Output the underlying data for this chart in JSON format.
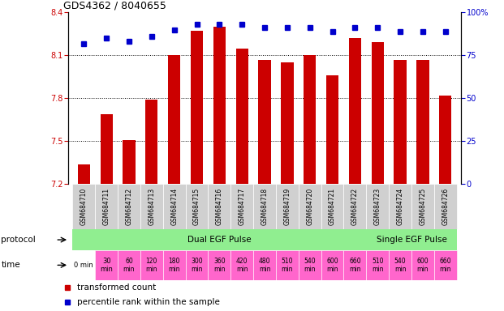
{
  "title": "GDS4362 / 8040655",
  "samples": [
    "GSM684710",
    "GSM684711",
    "GSM684712",
    "GSM684713",
    "GSM684714",
    "GSM684715",
    "GSM684716",
    "GSM684717",
    "GSM684718",
    "GSM684719",
    "GSM684720",
    "GSM684721",
    "GSM684722",
    "GSM684723",
    "GSM684724",
    "GSM684725",
    "GSM684726"
  ],
  "transformed_count": [
    7.34,
    7.69,
    7.51,
    7.79,
    8.1,
    8.27,
    8.3,
    8.15,
    8.07,
    8.05,
    8.1,
    7.96,
    8.22,
    8.19,
    8.07,
    8.07,
    7.82
  ],
  "percentile_rank": [
    82,
    85,
    83,
    86,
    90,
    93,
    93,
    93,
    91,
    91,
    91,
    89,
    91,
    91,
    89,
    89,
    89
  ],
  "time_labels": [
    "0 min",
    "30\nmin",
    "60\nmin",
    "120\nmin",
    "180\nmin",
    "300\nmin",
    "360\nmin",
    "420\nmin",
    "480\nmin",
    "510\nmin",
    "540\nmin",
    "600\nmin",
    "660\nmin",
    "510\nmin",
    "540\nmin",
    "600\nmin",
    "660\nmin"
  ],
  "protocol_dual": "Dual EGF Pulse",
  "protocol_single": "Single EGF Pulse",
  "bar_color": "#cc0000",
  "dot_color": "#0000cc",
  "ylim_left": [
    7.2,
    8.4
  ],
  "ylim_right": [
    0,
    100
  ],
  "yticks_left": [
    7.2,
    7.5,
    7.8,
    8.1,
    8.4
  ],
  "yticks_right": [
    0,
    25,
    50,
    75,
    100
  ],
  "bar_bottom": 7.2,
  "legend_red": "transformed count",
  "legend_blue": "percentile rank within the sample",
  "gray_cell": "#d0d0d0",
  "green_proto": "#90ee90",
  "magenta_time": "#ff66cc",
  "white_cell": "#ffffff",
  "time_bg_colors": [
    "#ffffff",
    "#ff66cc",
    "#ff66cc",
    "#ff66cc",
    "#ff66cc",
    "#ff66cc",
    "#ff66cc",
    "#ff66cc",
    "#ff66cc",
    "#ff66cc",
    "#ff66cc",
    "#ff66cc",
    "#ff66cc",
    "#ff66cc",
    "#ff66cc",
    "#ff66cc",
    "#ff66cc"
  ]
}
